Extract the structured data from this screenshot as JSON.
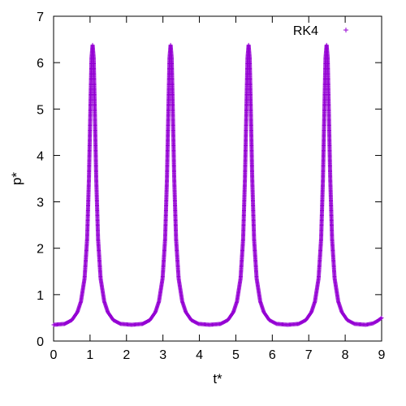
{
  "chart_data": {
    "type": "scatter",
    "title": "",
    "xlabel": "t*",
    "ylabel": "p*",
    "xlim": [
      0,
      9
    ],
    "ylim": [
      0,
      7
    ],
    "xticks": [
      "0",
      "1",
      "2",
      "3",
      "4",
      "5",
      "6",
      "7",
      "8",
      "9"
    ],
    "yticks": [
      "0",
      "1",
      "2",
      "3",
      "4",
      "5",
      "6",
      "7"
    ],
    "grid": false,
    "legend_position": "top-right",
    "marker": "+",
    "series": [
      {
        "name": "RK4",
        "color": "#9400d3",
        "points": [
          [
            0.0,
            0.35
          ],
          [
            0.3,
            0.37
          ],
          [
            0.5,
            0.45
          ],
          [
            0.65,
            0.62
          ],
          [
            0.75,
            0.85
          ],
          [
            0.85,
            1.35
          ],
          [
            0.92,
            2.2
          ],
          [
            0.97,
            3.5
          ],
          [
            1.01,
            5.0
          ],
          [
            1.04,
            6.1
          ],
          [
            1.07,
            6.38
          ],
          [
            1.1,
            6.1
          ],
          [
            1.13,
            5.0
          ],
          [
            1.17,
            3.5
          ],
          [
            1.22,
            2.2
          ],
          [
            1.29,
            1.35
          ],
          [
            1.39,
            0.85
          ],
          [
            1.49,
            0.62
          ],
          [
            1.64,
            0.45
          ],
          [
            1.84,
            0.37
          ],
          [
            2.14,
            0.35
          ],
          [
            2.44,
            0.37
          ],
          [
            2.64,
            0.45
          ],
          [
            2.79,
            0.62
          ],
          [
            2.89,
            0.85
          ],
          [
            2.99,
            1.35
          ],
          [
            3.06,
            2.2
          ],
          [
            3.11,
            3.5
          ],
          [
            3.15,
            5.0
          ],
          [
            3.18,
            6.1
          ],
          [
            3.21,
            6.38
          ],
          [
            3.24,
            6.1
          ],
          [
            3.27,
            5.0
          ],
          [
            3.31,
            3.5
          ],
          [
            3.36,
            2.2
          ],
          [
            3.43,
            1.35
          ],
          [
            3.53,
            0.85
          ],
          [
            3.63,
            0.62
          ],
          [
            3.78,
            0.45
          ],
          [
            3.98,
            0.37
          ],
          [
            4.28,
            0.35
          ],
          [
            4.58,
            0.37
          ],
          [
            4.78,
            0.45
          ],
          [
            4.93,
            0.62
          ],
          [
            5.03,
            0.85
          ],
          [
            5.13,
            1.35
          ],
          [
            5.2,
            2.2
          ],
          [
            5.25,
            3.5
          ],
          [
            5.29,
            5.0
          ],
          [
            5.32,
            6.1
          ],
          [
            5.35,
            6.38
          ],
          [
            5.38,
            6.1
          ],
          [
            5.41,
            5.0
          ],
          [
            5.45,
            3.5
          ],
          [
            5.5,
            2.2
          ],
          [
            5.57,
            1.35
          ],
          [
            5.67,
            0.85
          ],
          [
            5.77,
            0.62
          ],
          [
            5.92,
            0.45
          ],
          [
            6.12,
            0.37
          ],
          [
            6.42,
            0.35
          ],
          [
            6.72,
            0.37
          ],
          [
            6.92,
            0.45
          ],
          [
            7.07,
            0.62
          ],
          [
            7.17,
            0.85
          ],
          [
            7.27,
            1.35
          ],
          [
            7.34,
            2.2
          ],
          [
            7.39,
            3.5
          ],
          [
            7.43,
            5.0
          ],
          [
            7.46,
            6.1
          ],
          [
            7.49,
            6.38
          ],
          [
            7.52,
            6.1
          ],
          [
            7.55,
            5.0
          ],
          [
            7.59,
            3.5
          ],
          [
            7.64,
            2.2
          ],
          [
            7.71,
            1.35
          ],
          [
            7.81,
            0.85
          ],
          [
            7.91,
            0.62
          ],
          [
            8.06,
            0.45
          ],
          [
            8.26,
            0.37
          ],
          [
            8.56,
            0.35
          ],
          [
            8.76,
            0.38
          ],
          [
            8.9,
            0.44
          ],
          [
            9.0,
            0.5
          ]
        ]
      }
    ]
  }
}
